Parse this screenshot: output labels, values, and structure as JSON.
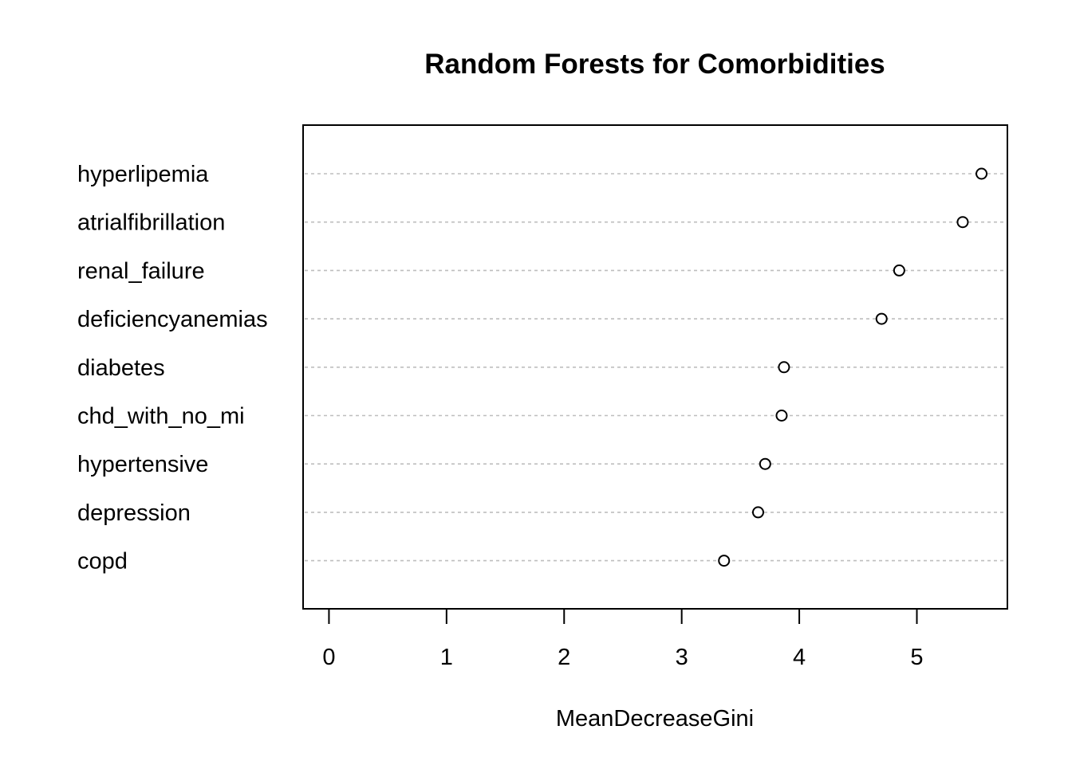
{
  "chart_data": {
    "type": "scatter",
    "title": "Random Forests for Comorbidities",
    "xlabel": "MeanDecreaseGini",
    "ylabel": "",
    "xlim": [
      -0.22,
      5.77
    ],
    "xticks": [
      0,
      1,
      2,
      3,
      4,
      5
    ],
    "categories": [
      "hyperlipemia",
      "atrialfibrillation",
      "renal_failure",
      "deficiencyanemias",
      "diabetes",
      "chd_with_no_mi",
      "hypertensive",
      "depression",
      "copd"
    ],
    "values": [
      5.55,
      5.39,
      4.85,
      4.7,
      3.87,
      3.85,
      3.71,
      3.65,
      3.36
    ],
    "grid": "dashed horizontal guides per category",
    "colors": {
      "marker_stroke": "#000000",
      "marker_fill": "#ffffff",
      "guide": "#bebebe",
      "frame": "#000000"
    }
  }
}
